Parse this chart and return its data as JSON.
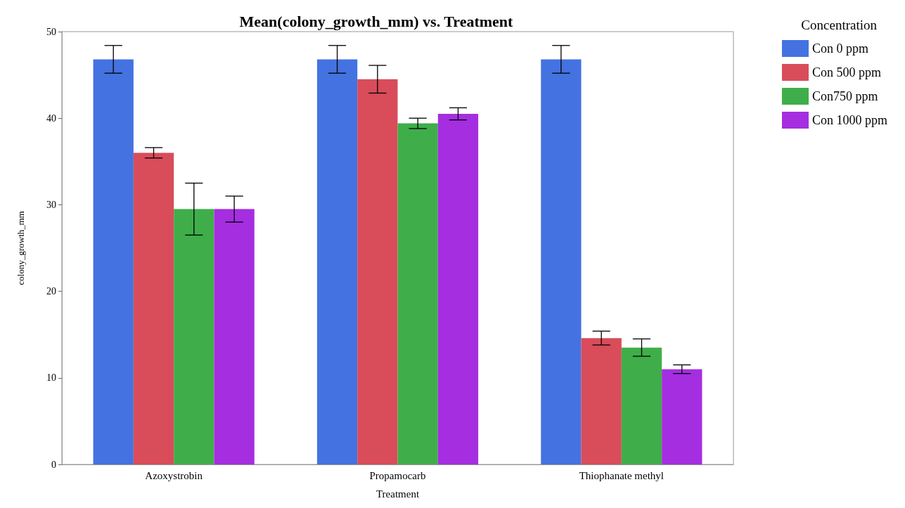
{
  "chart_data": {
    "type": "bar",
    "title": "Mean(colony_growth_mm) vs. Treatment",
    "xlabel": "Treatment",
    "ylabel": "colony_growth_mm",
    "legend_title": "Concentration",
    "categories": [
      "Azoxystrobin",
      "Propamocarb",
      "Thiophanate methyl"
    ],
    "series": [
      {
        "name": "Con 0 ppm",
        "color": "#4472e0",
        "values": [
          46.8,
          46.8,
          46.8
        ],
        "errors": [
          1.6,
          1.6,
          1.6
        ]
      },
      {
        "name": "Con 500 ppm",
        "color": "#d94c5a",
        "values": [
          36.0,
          44.5,
          14.6
        ],
        "errors": [
          0.6,
          1.6,
          0.8
        ]
      },
      {
        "name": "Con750 ppm",
        "color": "#3fae4a",
        "values": [
          29.5,
          39.4,
          13.5
        ],
        "errors": [
          3.0,
          0.6,
          1.0
        ]
      },
      {
        "name": "Con 1000 ppm",
        "color": "#a52ee0",
        "values": [
          29.5,
          40.5,
          11.0
        ],
        "errors": [
          1.5,
          0.7,
          0.5
        ]
      }
    ],
    "ylim": [
      0,
      50
    ],
    "yticks": [
      0,
      10,
      20,
      30,
      40,
      50
    ],
    "grid": false,
    "legend": "right"
  }
}
